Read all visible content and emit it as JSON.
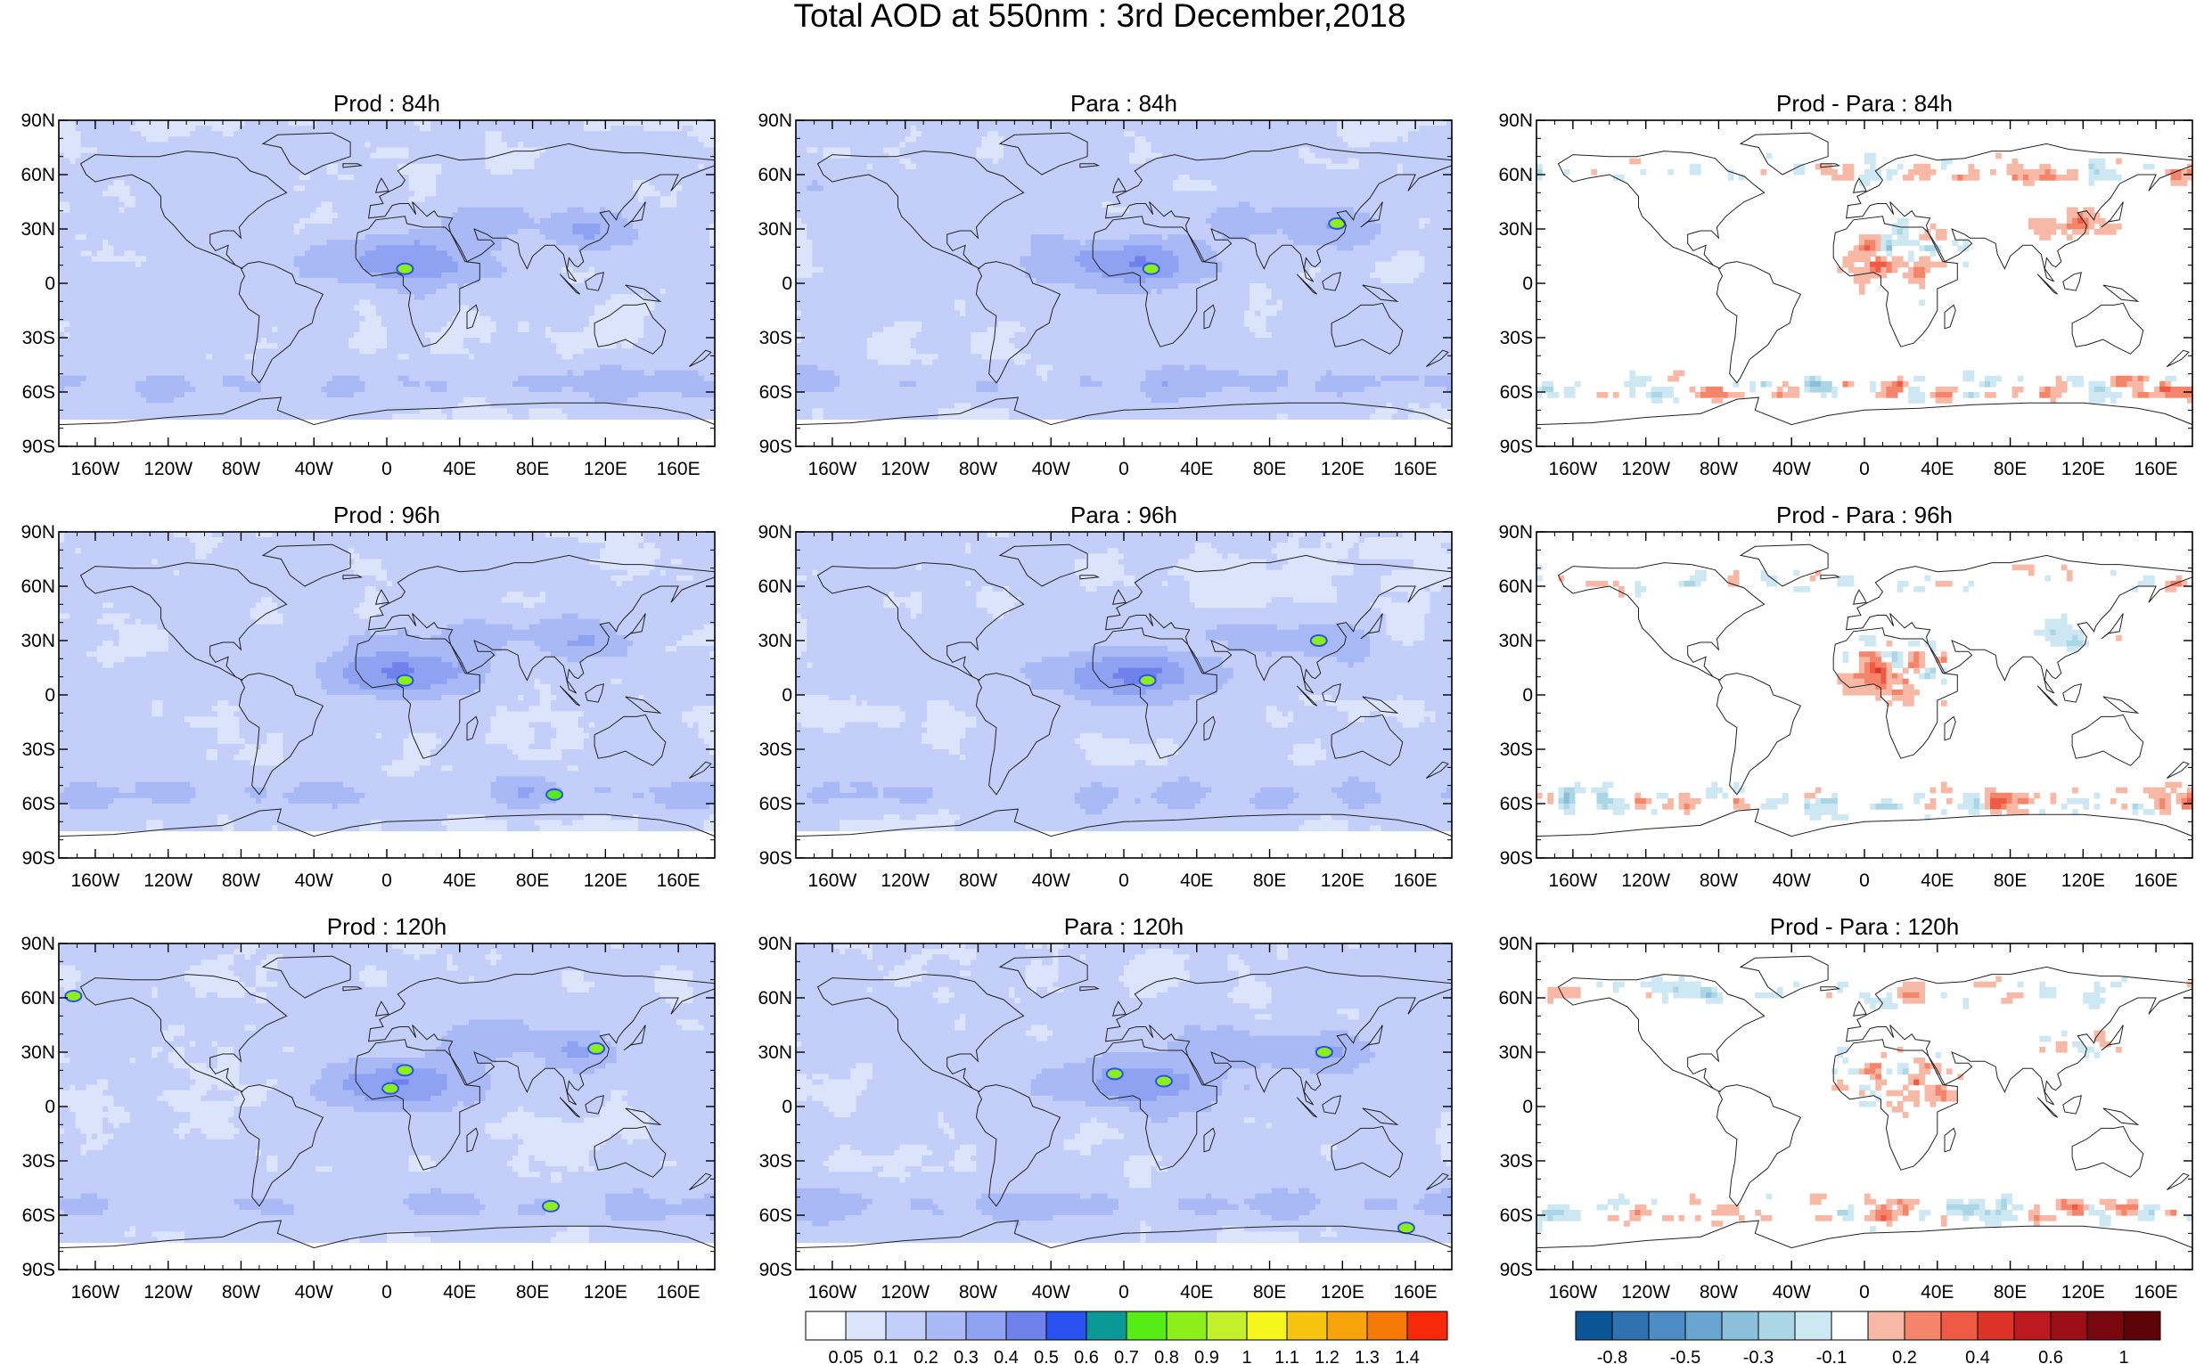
{
  "title": "Total AOD at 550nm : 3rd December,2018",
  "panels": [
    {
      "title": "Prod : 84h",
      "kind": "aod",
      "variant": 0
    },
    {
      "title": "Para : 84h",
      "kind": "aod",
      "variant": 1
    },
    {
      "title": "Prod - Para : 84h",
      "kind": "diff",
      "variant": 2
    },
    {
      "title": "Prod : 96h",
      "kind": "aod",
      "variant": 3
    },
    {
      "title": "Para : 96h",
      "kind": "aod",
      "variant": 4
    },
    {
      "title": "Prod - Para : 96h",
      "kind": "diff",
      "variant": 5
    },
    {
      "title": "Prod : 120h",
      "kind": "aod",
      "variant": 6
    },
    {
      "title": "Para : 120h",
      "kind": "aod",
      "variant": 7
    },
    {
      "title": "Prod - Para : 120h",
      "kind": "diff",
      "variant": 8
    }
  ],
  "axes": {
    "lat_ticks": [
      "90N",
      "60N",
      "30N",
      "0",
      "30S",
      "60S",
      "90S"
    ],
    "lat_values": [
      90,
      60,
      30,
      0,
      -30,
      -60,
      -90
    ],
    "lon_ticks": [
      "160W",
      "120W",
      "80W",
      "40W",
      "0",
      "40E",
      "80E",
      "120E",
      "160E"
    ],
    "lon_values": [
      -160,
      -120,
      -80,
      -40,
      0,
      40,
      80,
      120,
      160
    ],
    "xlim": [
      -180,
      180
    ],
    "ylim": [
      -90,
      90
    ]
  },
  "colorbars": {
    "aod": {
      "labels": [
        "0.05",
        "0.1",
        "0.2",
        "0.3",
        "0.4",
        "0.5",
        "0.6",
        "0.7",
        "0.8",
        "0.9",
        "1",
        "1.1",
        "1.2",
        "1.3",
        "1.4"
      ],
      "colors": [
        "#ffffff",
        "#dce4fb",
        "#c3cff8",
        "#a8b9f5",
        "#8ea2f1",
        "#6f82ec",
        "#2a52f0",
        "#0a9a96",
        "#56ec16",
        "#8cef1a",
        "#c2f02a",
        "#f6f61c",
        "#f6c410",
        "#f6a40a",
        "#f67a06",
        "#f62a08"
      ]
    },
    "diff": {
      "labels": [
        "-0.8",
        "-0.5",
        "-0.3",
        "-0.1",
        "0.2",
        "0.4",
        "0.6",
        "1"
      ],
      "colors": [
        "#0a5596",
        "#2f72b0",
        "#4e8cc4",
        "#6aa4d0",
        "#8bbfda",
        "#aad6e6",
        "#cde8f2",
        "#ffffff",
        "#f8b8a6",
        "#f4846a",
        "#ee5a44",
        "#dc3228",
        "#bc1a1e",
        "#9c0e16",
        "#780810",
        "#5c0408"
      ]
    }
  },
  "chart_data": [
    {
      "type": "heatmap",
      "title": "Prod : 84h",
      "variable": "AOD",
      "xlim": [
        -180,
        180
      ],
      "ylim": [
        -90,
        90
      ],
      "hotspots": [
        {
          "lon": 10,
          "lat": 8,
          "value": 0.8
        }
      ]
    },
    {
      "type": "heatmap",
      "title": "Para : 84h",
      "variable": "AOD",
      "xlim": [
        -180,
        180
      ],
      "ylim": [
        -90,
        90
      ],
      "hotspots": [
        {
          "lon": 15,
          "lat": 8,
          "value": 0.8
        },
        {
          "lon": 117,
          "lat": 33,
          "value": 0.8
        }
      ]
    },
    {
      "type": "heatmap",
      "title": "Prod - Para : 84h",
      "variable": "AOD difference",
      "xlim": [
        -180,
        180
      ],
      "ylim": [
        -90,
        90
      ]
    },
    {
      "type": "heatmap",
      "title": "Prod : 96h",
      "variable": "AOD",
      "xlim": [
        -180,
        180
      ],
      "ylim": [
        -90,
        90
      ],
      "hotspots": [
        {
          "lon": 10,
          "lat": 8,
          "value": 0.8
        },
        {
          "lon": 92,
          "lat": -55,
          "value": 0.7
        }
      ]
    },
    {
      "type": "heatmap",
      "title": "Para : 96h",
      "variable": "AOD",
      "xlim": [
        -180,
        180
      ],
      "ylim": [
        -90,
        90
      ],
      "hotspots": [
        {
          "lon": 13,
          "lat": 8,
          "value": 0.8
        },
        {
          "lon": 107,
          "lat": 30,
          "value": 0.8
        }
      ]
    },
    {
      "type": "heatmap",
      "title": "Prod - Para : 96h",
      "variable": "AOD difference",
      "xlim": [
        -180,
        180
      ],
      "ylim": [
        -90,
        90
      ]
    },
    {
      "type": "heatmap",
      "title": "Prod : 120h",
      "variable": "AOD",
      "xlim": [
        -180,
        180
      ],
      "ylim": [
        -90,
        90
      ],
      "hotspots": [
        {
          "lon": 10,
          "lat": 20,
          "value": 0.8
        },
        {
          "lon": 2,
          "lat": 10,
          "value": 0.8
        },
        {
          "lon": 115,
          "lat": 32,
          "value": 0.8
        },
        {
          "lon": 90,
          "lat": -55,
          "value": 0.8
        },
        {
          "lon": -172,
          "lat": 61,
          "value": 0.8
        }
      ]
    },
    {
      "type": "heatmap",
      "title": "Para : 120h",
      "variable": "AOD",
      "xlim": [
        -180,
        180
      ],
      "ylim": [
        -90,
        90
      ],
      "hotspots": [
        {
          "lon": -5,
          "lat": 18,
          "value": 0.8
        },
        {
          "lon": 22,
          "lat": 14,
          "value": 0.8
        },
        {
          "lon": 110,
          "lat": 30,
          "value": 0.8
        },
        {
          "lon": 155,
          "lat": -67,
          "value": 0.8
        }
      ]
    },
    {
      "type": "heatmap",
      "title": "Prod - Para : 120h",
      "variable": "AOD difference",
      "xlim": [
        -180,
        180
      ],
      "ylim": [
        -90,
        90
      ]
    }
  ]
}
